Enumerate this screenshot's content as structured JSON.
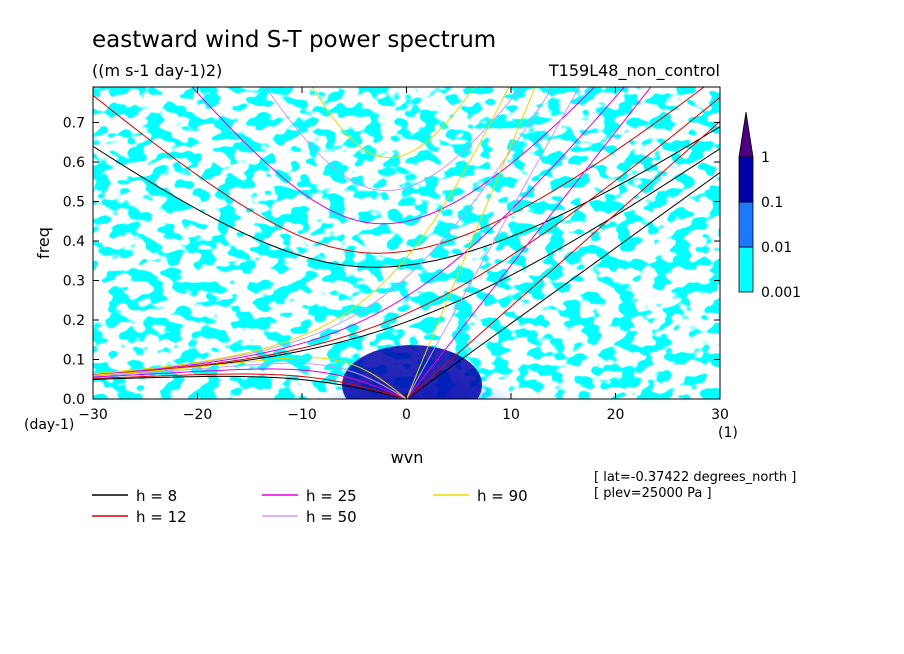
{
  "chart_data": {
    "type": "heatmap",
    "title": "eastward wind S-T power spectrum",
    "units": "((m s-1 day-1)2)",
    "experiment": "T159L48_non_control",
    "xlabel": "wvn",
    "ylabel": "freq",
    "x_unit": "(1)",
    "y_unit": "(day-1)",
    "xlim": [
      -30,
      30
    ],
    "ylim": [
      0,
      0.79
    ],
    "x_ticks": [
      -30,
      -20,
      -10,
      0,
      10,
      20,
      30
    ],
    "x_tick_labels": [
      "−30",
      "−20",
      "−10",
      "0",
      "10",
      "20",
      "30"
    ],
    "y_ticks": [
      0,
      0.1,
      0.2,
      0.3,
      0.4,
      0.5,
      0.6,
      0.7
    ],
    "y_tick_labels": [
      "0.0",
      "0.1",
      "0.2",
      "0.3",
      "0.4",
      "0.5",
      "0.6",
      "0.7"
    ],
    "colorbar": {
      "levels": [
        0.001,
        0.01,
        0.1,
        1
      ],
      "labels": [
        "0.001",
        "0.01",
        "0.1",
        "1"
      ],
      "colors": [
        "#00ffff",
        "#1e78ff",
        "#0000aa",
        "#4b0082"
      ]
    },
    "dispersion_curves": [
      {
        "h": 8,
        "label": "h =  8",
        "color": "#000000"
      },
      {
        "h": 12,
        "label": "h = 12",
        "color": "#dd0000"
      },
      {
        "h": 25,
        "label": "h = 25",
        "color": "#dd00dd"
      },
      {
        "h": 50,
        "label": "h = 50",
        "color": "#cc99ee"
      },
      {
        "h": 90,
        "label": "h = 90",
        "color": "#e8d800"
      }
    ],
    "annotations": [
      "[ lat=-0.37422 degrees_north ]",
      "[ plev=25000 Pa ]"
    ]
  }
}
